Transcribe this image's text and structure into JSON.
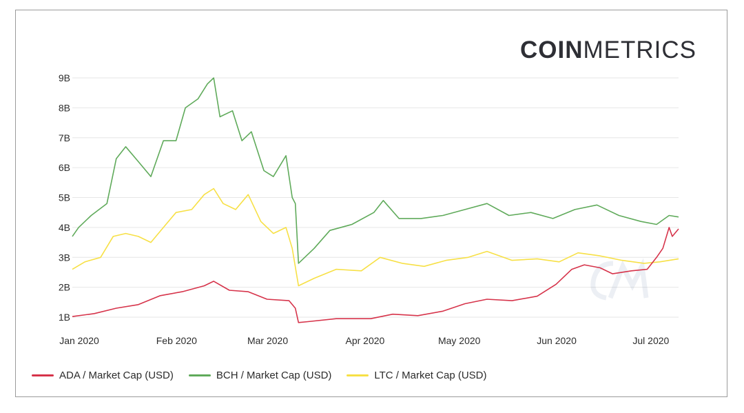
{
  "brand": {
    "bold": "COIN",
    "light": "METRICS"
  },
  "chart_data": {
    "type": "line",
    "title": "",
    "xlabel": "",
    "ylabel": "",
    "x_ticks": [
      "Jan 2020",
      "Feb 2020",
      "Mar 2020",
      "Apr 2020",
      "May 2020",
      "Jun 2020",
      "Jul 2020"
    ],
    "y_ticks": [
      "1B",
      "2B",
      "3B",
      "4B",
      "5B",
      "6B",
      "7B",
      "8B",
      "9B"
    ],
    "x_range": [
      "2020-01-01",
      "2020-07-12"
    ],
    "ylim": [
      1,
      9
    ],
    "grid": "horizontal",
    "legend_position": "bottom",
    "series": [
      {
        "name": "ADA / Market Cap (USD)",
        "color": "#d6334a",
        "points": [
          [
            "2020-01-01",
            1.02
          ],
          [
            "2020-01-08",
            1.12
          ],
          [
            "2020-01-15",
            1.3
          ],
          [
            "2020-01-22",
            1.42
          ],
          [
            "2020-01-29",
            1.72
          ],
          [
            "2020-02-05",
            1.85
          ],
          [
            "2020-02-12",
            2.05
          ],
          [
            "2020-02-15",
            2.2
          ],
          [
            "2020-02-20",
            1.9
          ],
          [
            "2020-02-26",
            1.85
          ],
          [
            "2020-03-03",
            1.6
          ],
          [
            "2020-03-10",
            1.55
          ],
          [
            "2020-03-12",
            1.3
          ],
          [
            "2020-03-13",
            0.82
          ],
          [
            "2020-03-16",
            0.85
          ],
          [
            "2020-03-25",
            0.95
          ],
          [
            "2020-04-05",
            0.95
          ],
          [
            "2020-04-12",
            1.1
          ],
          [
            "2020-04-20",
            1.05
          ],
          [
            "2020-04-28",
            1.2
          ],
          [
            "2020-05-05",
            1.45
          ],
          [
            "2020-05-12",
            1.6
          ],
          [
            "2020-05-20",
            1.55
          ],
          [
            "2020-05-28",
            1.7
          ],
          [
            "2020-06-03",
            2.1
          ],
          [
            "2020-06-08",
            2.6
          ],
          [
            "2020-06-12",
            2.75
          ],
          [
            "2020-06-17",
            2.65
          ],
          [
            "2020-06-21",
            2.45
          ],
          [
            "2020-06-27",
            2.55
          ],
          [
            "2020-07-02",
            2.6
          ],
          [
            "2020-07-05",
            3.0
          ],
          [
            "2020-07-07",
            3.3
          ],
          [
            "2020-07-09",
            4.0
          ],
          [
            "2020-07-10",
            3.7
          ],
          [
            "2020-07-12",
            3.95
          ]
        ]
      },
      {
        "name": "BCH / Market Cap (USD)",
        "color": "#5faa5a",
        "points": [
          [
            "2020-01-01",
            3.7
          ],
          [
            "2020-01-03",
            4.0
          ],
          [
            "2020-01-07",
            4.4
          ],
          [
            "2020-01-12",
            4.8
          ],
          [
            "2020-01-15",
            6.3
          ],
          [
            "2020-01-18",
            6.7
          ],
          [
            "2020-01-22",
            6.2
          ],
          [
            "2020-01-26",
            5.7
          ],
          [
            "2020-01-30",
            6.9
          ],
          [
            "2020-02-03",
            6.9
          ],
          [
            "2020-02-06",
            8.0
          ],
          [
            "2020-02-10",
            8.3
          ],
          [
            "2020-02-13",
            8.8
          ],
          [
            "2020-02-15",
            9.0
          ],
          [
            "2020-02-17",
            7.7
          ],
          [
            "2020-02-21",
            7.9
          ],
          [
            "2020-02-24",
            6.9
          ],
          [
            "2020-02-27",
            7.2
          ],
          [
            "2020-03-02",
            5.9
          ],
          [
            "2020-03-05",
            5.7
          ],
          [
            "2020-03-09",
            6.4
          ],
          [
            "2020-03-11",
            5.0
          ],
          [
            "2020-03-12",
            4.8
          ],
          [
            "2020-03-13",
            2.8
          ],
          [
            "2020-03-18",
            3.3
          ],
          [
            "2020-03-23",
            3.9
          ],
          [
            "2020-03-30",
            4.1
          ],
          [
            "2020-04-06",
            4.5
          ],
          [
            "2020-04-09",
            4.9
          ],
          [
            "2020-04-14",
            4.3
          ],
          [
            "2020-04-21",
            4.3
          ],
          [
            "2020-04-28",
            4.4
          ],
          [
            "2020-05-05",
            4.6
          ],
          [
            "2020-05-12",
            4.8
          ],
          [
            "2020-05-19",
            4.4
          ],
          [
            "2020-05-26",
            4.5
          ],
          [
            "2020-06-02",
            4.3
          ],
          [
            "2020-06-09",
            4.6
          ],
          [
            "2020-06-16",
            4.75
          ],
          [
            "2020-06-23",
            4.4
          ],
          [
            "2020-06-30",
            4.2
          ],
          [
            "2020-07-05",
            4.1
          ],
          [
            "2020-07-09",
            4.4
          ],
          [
            "2020-07-12",
            4.35
          ]
        ]
      },
      {
        "name": "LTC / Market Cap (USD)",
        "color": "#f7e045",
        "points": [
          [
            "2020-01-01",
            2.6
          ],
          [
            "2020-01-05",
            2.85
          ],
          [
            "2020-01-10",
            3.0
          ],
          [
            "2020-01-14",
            3.7
          ],
          [
            "2020-01-18",
            3.8
          ],
          [
            "2020-01-22",
            3.7
          ],
          [
            "2020-01-26",
            3.5
          ],
          [
            "2020-01-30",
            4.0
          ],
          [
            "2020-02-03",
            4.5
          ],
          [
            "2020-02-08",
            4.6
          ],
          [
            "2020-02-12",
            5.1
          ],
          [
            "2020-02-15",
            5.3
          ],
          [
            "2020-02-18",
            4.8
          ],
          [
            "2020-02-22",
            4.6
          ],
          [
            "2020-02-26",
            5.1
          ],
          [
            "2020-03-01",
            4.2
          ],
          [
            "2020-03-05",
            3.8
          ],
          [
            "2020-03-09",
            4.0
          ],
          [
            "2020-03-11",
            3.3
          ],
          [
            "2020-03-13",
            2.05
          ],
          [
            "2020-03-18",
            2.3
          ],
          [
            "2020-03-25",
            2.6
          ],
          [
            "2020-04-02",
            2.55
          ],
          [
            "2020-04-08",
            3.0
          ],
          [
            "2020-04-15",
            2.8
          ],
          [
            "2020-04-22",
            2.7
          ],
          [
            "2020-04-29",
            2.9
          ],
          [
            "2020-05-06",
            3.0
          ],
          [
            "2020-05-12",
            3.2
          ],
          [
            "2020-05-20",
            2.9
          ],
          [
            "2020-05-28",
            2.95
          ],
          [
            "2020-06-04",
            2.85
          ],
          [
            "2020-06-10",
            3.15
          ],
          [
            "2020-06-17",
            3.05
          ],
          [
            "2020-06-24",
            2.9
          ],
          [
            "2020-07-01",
            2.8
          ],
          [
            "2020-07-06",
            2.85
          ],
          [
            "2020-07-12",
            2.95
          ]
        ]
      }
    ]
  }
}
